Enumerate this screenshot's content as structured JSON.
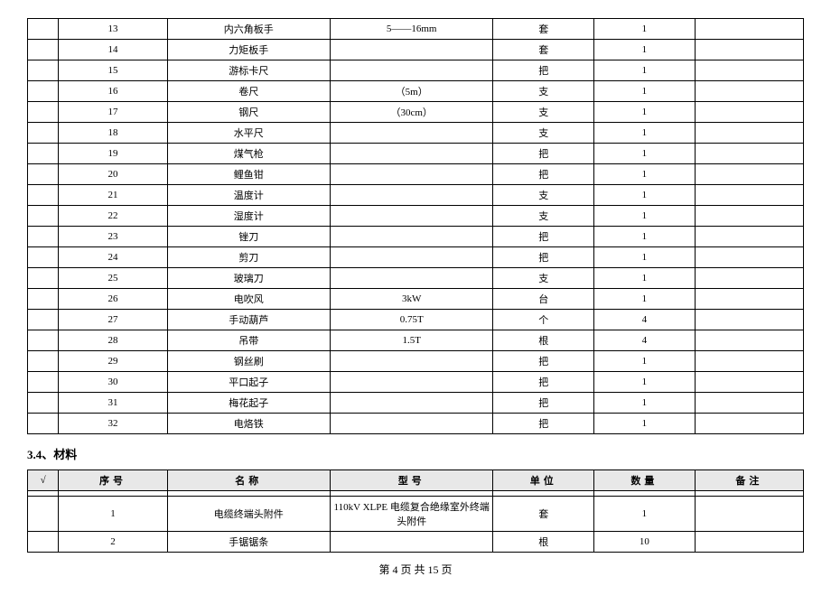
{
  "table1": {
    "rows": [
      {
        "seq": "13",
        "name": "内六角板手",
        "model": "5——16mm",
        "unit": "套",
        "qty": "1",
        "note": ""
      },
      {
        "seq": "14",
        "name": "力矩板手",
        "model": "",
        "unit": "套",
        "qty": "1",
        "note": ""
      },
      {
        "seq": "15",
        "name": "游标卡尺",
        "model": "",
        "unit": "把",
        "qty": "1",
        "note": ""
      },
      {
        "seq": "16",
        "name": "卷尺",
        "model": "（5m）",
        "unit": "支",
        "qty": "1",
        "note": ""
      },
      {
        "seq": "17",
        "name": "钢尺",
        "model": "（30cm）",
        "unit": "支",
        "qty": "1",
        "note": ""
      },
      {
        "seq": "18",
        "name": "水平尺",
        "model": "",
        "unit": "支",
        "qty": "1",
        "note": ""
      },
      {
        "seq": "19",
        "name": "煤气枪",
        "model": "",
        "unit": "把",
        "qty": "1",
        "note": ""
      },
      {
        "seq": "20",
        "name": "鲤鱼钳",
        "model": "",
        "unit": "把",
        "qty": "1",
        "note": ""
      },
      {
        "seq": "21",
        "name": "温度计",
        "model": "",
        "unit": "支",
        "qty": "1",
        "note": ""
      },
      {
        "seq": "22",
        "name": "湿度计",
        "model": "",
        "unit": "支",
        "qty": "1",
        "note": ""
      },
      {
        "seq": "23",
        "name": "锉刀",
        "model": "",
        "unit": "把",
        "qty": "1",
        "note": ""
      },
      {
        "seq": "24",
        "name": "剪刀",
        "model": "",
        "unit": "把",
        "qty": "1",
        "note": ""
      },
      {
        "seq": "25",
        "name": "玻璃刀",
        "model": "",
        "unit": "支",
        "qty": "1",
        "note": ""
      },
      {
        "seq": "26",
        "name": "电吹风",
        "model": "3kW",
        "unit": "台",
        "qty": "1",
        "note": ""
      },
      {
        "seq": "27",
        "name": "手动葫芦",
        "model": "0.75T",
        "unit": "个",
        "qty": "4",
        "note": ""
      },
      {
        "seq": "28",
        "name": "吊带",
        "model": "1.5T",
        "unit": "根",
        "qty": "4",
        "note": ""
      },
      {
        "seq": "29",
        "name": "钢丝刷",
        "model": "",
        "unit": "把",
        "qty": "1",
        "note": ""
      },
      {
        "seq": "30",
        "name": "平口起子",
        "model": "",
        "unit": "把",
        "qty": "1",
        "note": ""
      },
      {
        "seq": "31",
        "name": "梅花起子",
        "model": "",
        "unit": "把",
        "qty": "1",
        "note": ""
      },
      {
        "seq": "32",
        "name": "电烙铁",
        "model": "",
        "unit": "把",
        "qty": "1",
        "note": ""
      }
    ]
  },
  "section_title": "3.4、材料",
  "table2": {
    "headers": {
      "check": "√",
      "seq": "序号",
      "name": "名称",
      "model": "型号",
      "unit": "单位",
      "qty": "数量",
      "note": "备注"
    },
    "rows": [
      {
        "seq": "1",
        "name": "电缆终端头附件",
        "model": "110kV XLPE 电缆复合绝缘室外终端头附件",
        "unit": "套",
        "qty": "1",
        "note": ""
      },
      {
        "seq": "2",
        "name": "手锯锯条",
        "model": "",
        "unit": "根",
        "qty": "10",
        "note": ""
      }
    ]
  },
  "footer": "第 4 页 共 15 页",
  "styling": {
    "font_family": "SimSun",
    "text_color": "#000000",
    "border_color": "#000000",
    "header_bg": "#e8e8e8",
    "background": "#ffffff",
    "body_fontsize": 12,
    "cell_fontsize": 11
  }
}
